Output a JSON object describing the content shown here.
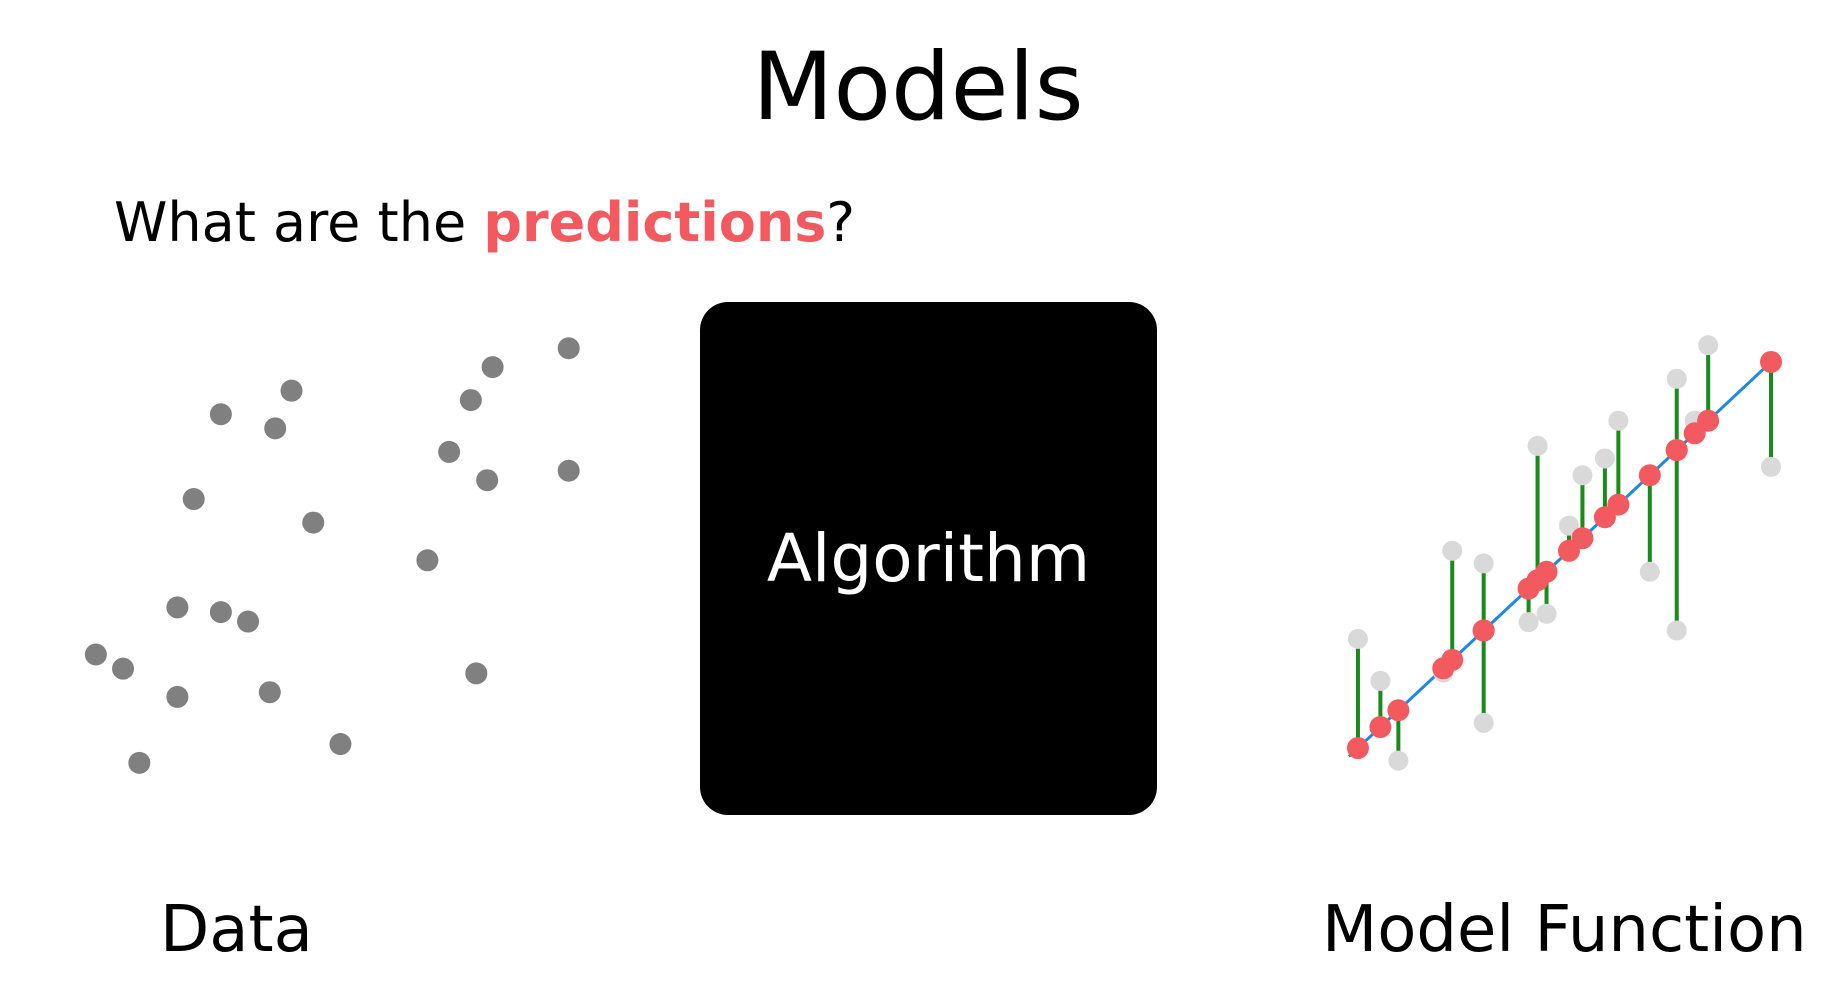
{
  "title": "Models",
  "question": {
    "prefix": "What are the ",
    "highlight": "predictions",
    "suffix": "?"
  },
  "algorithm_label": "Algorithm",
  "captions": {
    "left": "Data",
    "right": "Model Function"
  },
  "colors": {
    "data_point": "#808080",
    "observed_point": "#d9d9d9",
    "prediction_point": "#f25a60",
    "residual_line": "#1a8a1a",
    "regression_line": "#1e88e5",
    "highlight_text": "#f25a60",
    "algorithm_box": "#000000"
  },
  "chart_data": [
    {
      "type": "scatter",
      "series": [
        {
          "points": [
            [
              0.5,
              3.0
            ],
            [
              1.5,
              2.4
            ],
            [
              0.8,
              1.0
            ],
            [
              3.2,
              2.5
            ],
            [
              4.5,
              1.4
            ],
            [
              2.3,
              8.4
            ],
            [
              3.3,
              8.1
            ],
            [
              4.0,
              6.1
            ],
            [
              1.8,
              6.6
            ],
            [
              2.8,
              4.0
            ],
            [
              2.3,
              4.2
            ],
            [
              6.1,
              5.3
            ],
            [
              6.5,
              7.6
            ],
            [
              6.9,
              8.7
            ],
            [
              7.3,
              9.4
            ],
            [
              8.7,
              9.8
            ],
            [
              7.2,
              7.0
            ],
            [
              8.7,
              7.2
            ],
            [
              7.0,
              2.9
            ],
            [
              3.6,
              8.9
            ],
            [
              1.5,
              4.3
            ],
            [
              0.0,
              3.3
            ]
          ]
        }
      ],
      "xlim": [
        -0.2,
        9.0
      ],
      "ylim": [
        0.0,
        10.4
      ]
    },
    {
      "type": "scatter",
      "line": {
        "slope": 1.0,
        "intercept": 0.4,
        "x_range": [
          -0.2,
          9.2
        ]
      },
      "observed": [
        [
          0.0,
          3.0
        ],
        [
          0.5,
          2.0
        ],
        [
          0.9,
          0.1
        ],
        [
          1.9,
          2.2
        ],
        [
          2.1,
          5.1
        ],
        [
          2.8,
          4.8
        ],
        [
          2.8,
          1.0
        ],
        [
          3.8,
          3.4
        ],
        [
          4.0,
          7.6
        ],
        [
          4.2,
          3.6
        ],
        [
          4.7,
          5.7
        ],
        [
          5.0,
          6.9
        ],
        [
          5.5,
          7.3
        ],
        [
          5.8,
          8.2
        ],
        [
          6.5,
          4.6
        ],
        [
          7.1,
          9.2
        ],
        [
          7.1,
          3.2
        ],
        [
          7.5,
          8.2
        ],
        [
          7.8,
          10.0
        ],
        [
          9.2,
          7.1
        ]
      ]
    }
  ]
}
